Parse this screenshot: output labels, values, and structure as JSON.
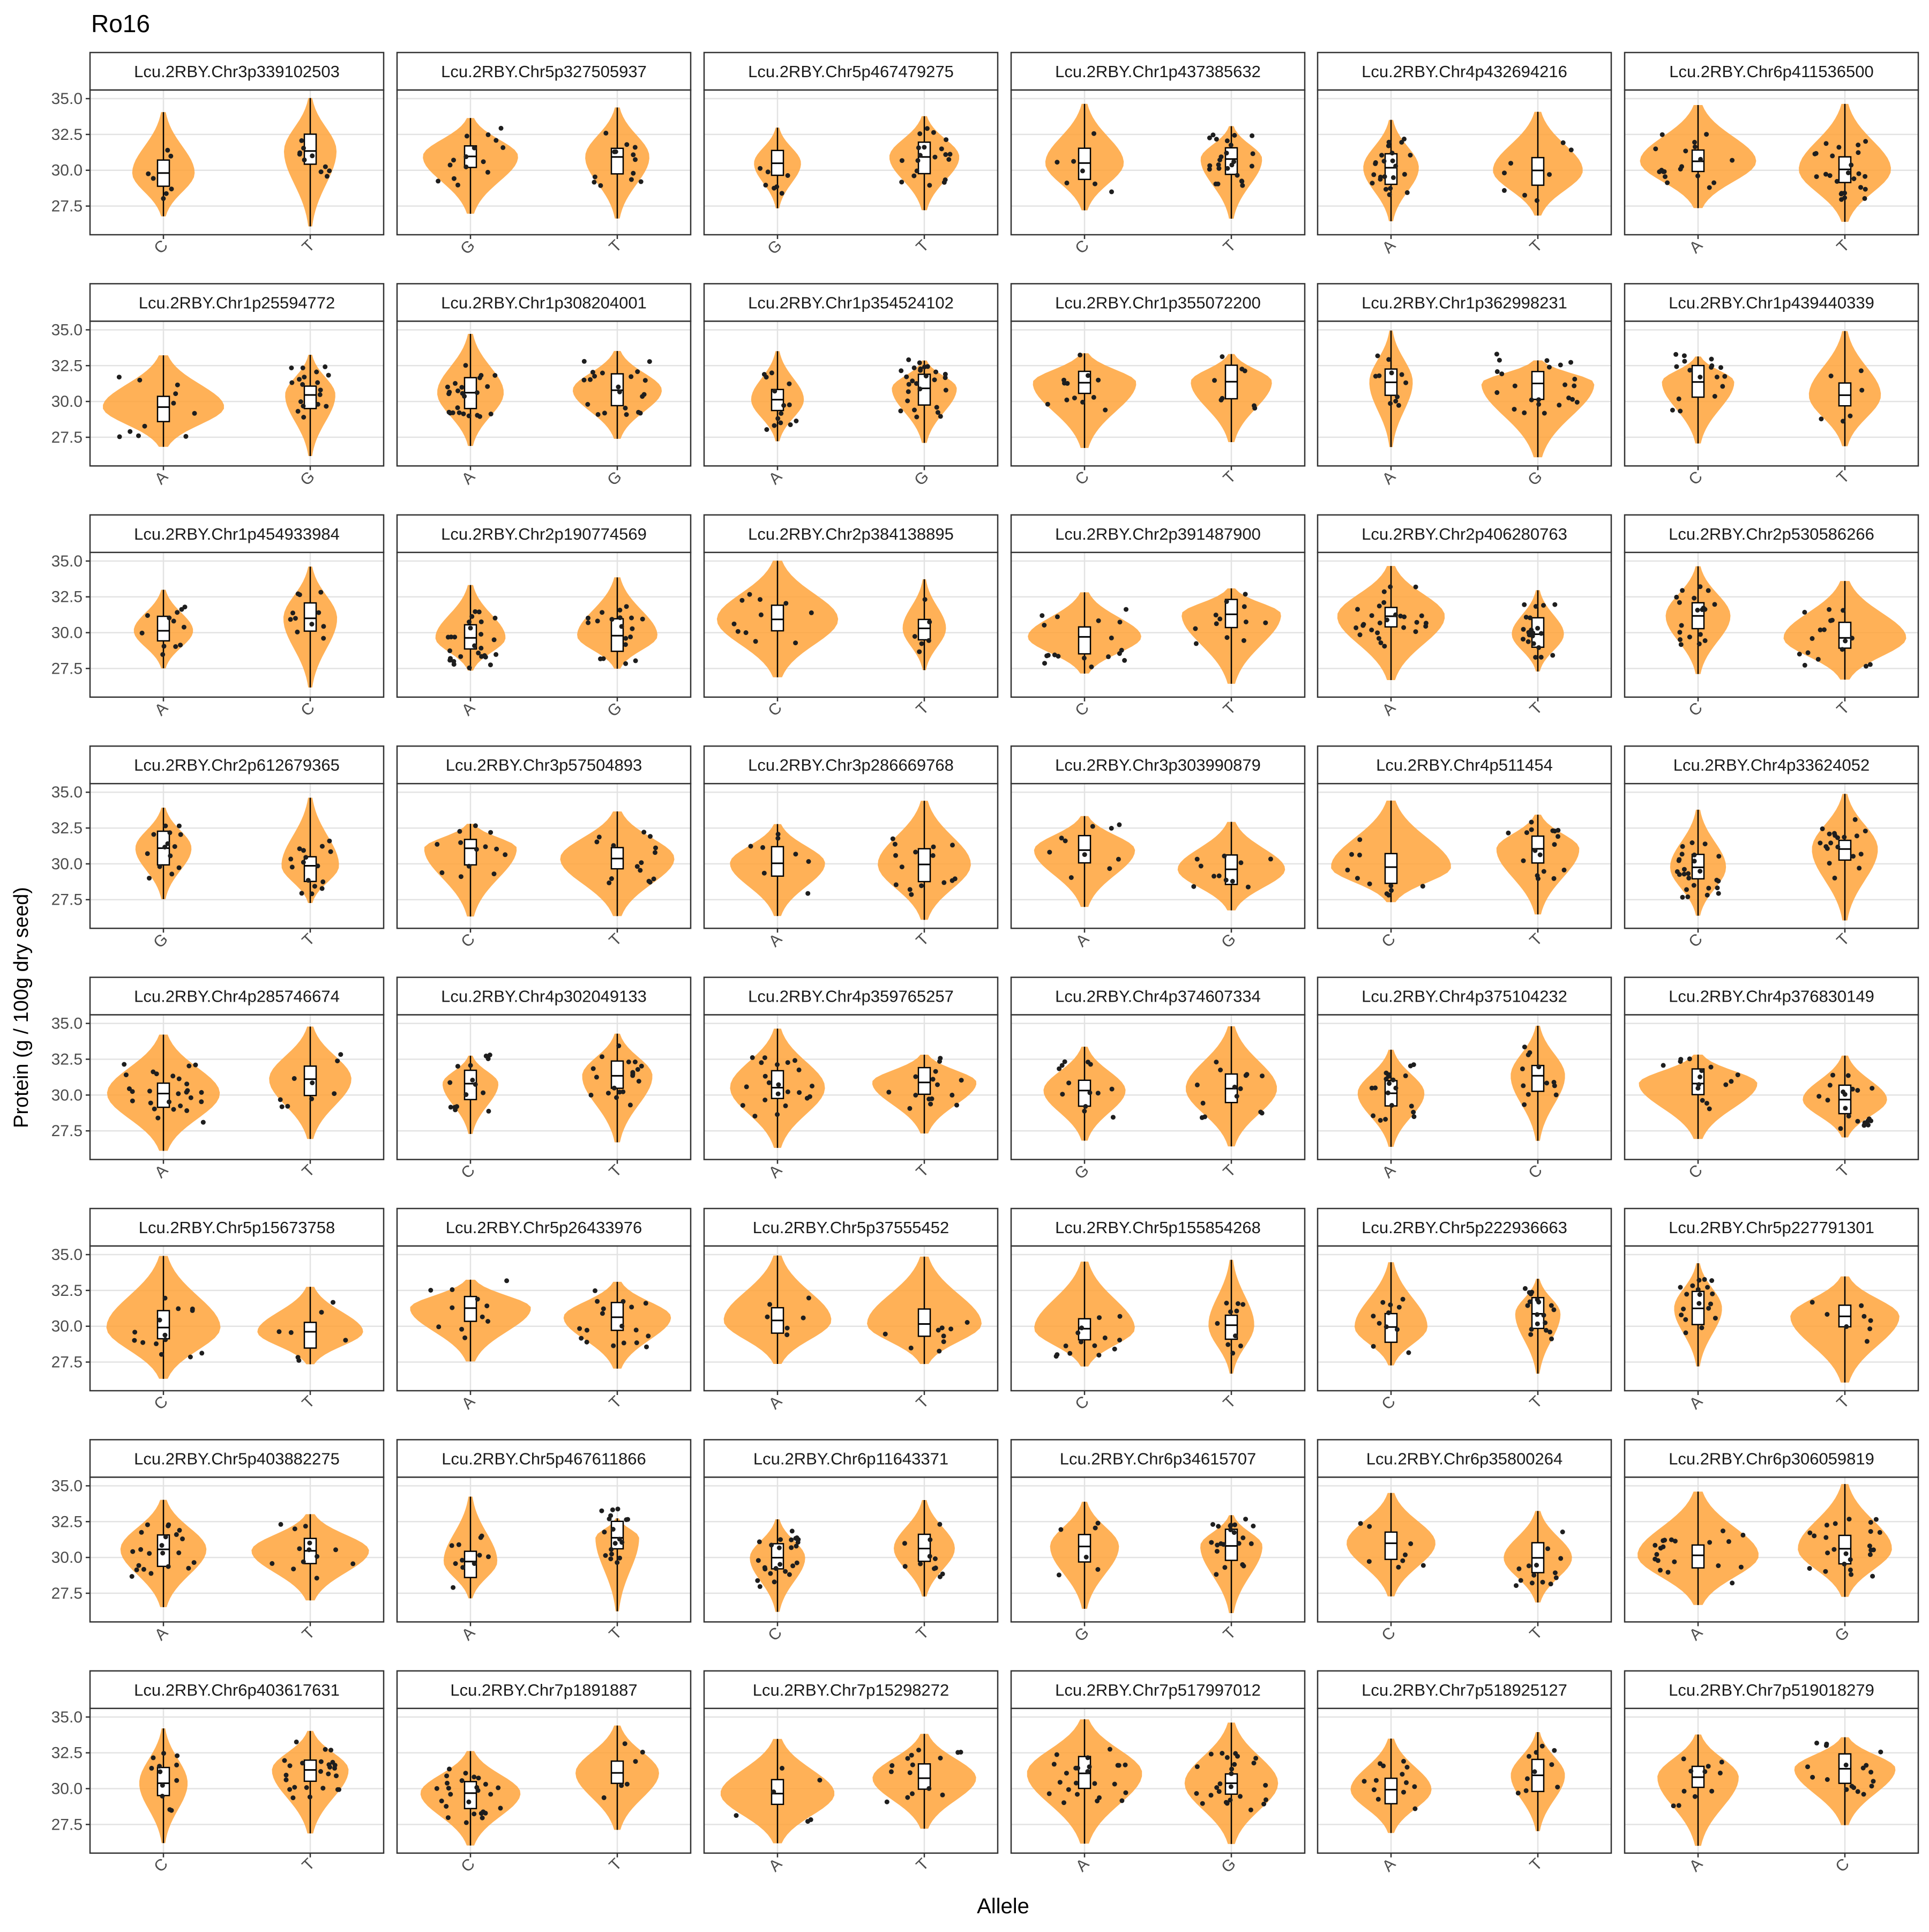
{
  "chart_data": {
    "type": "violin",
    "title": "Ro16",
    "xlabel": "Allele",
    "ylabel": "Protein (g / 100g dry seed)",
    "ylim": [
      25.5,
      35.6
    ],
    "yticks": [
      "27.5",
      "30.0",
      "32.5",
      "35.0"
    ],
    "ncols": 6,
    "nrows": 8,
    "violin_fill": "#FFA33A",
    "panels": [
      {
        "title": "Lcu.2RBY.Chr3p339102503",
        "alleles": [
          "C",
          "T"
        ]
      },
      {
        "title": "Lcu.2RBY.Chr5p327505937",
        "alleles": [
          "G",
          "T"
        ]
      },
      {
        "title": "Lcu.2RBY.Chr5p467479275",
        "alleles": [
          "G",
          "T"
        ]
      },
      {
        "title": "Lcu.2RBY.Chr1p437385632",
        "alleles": [
          "C",
          "T"
        ]
      },
      {
        "title": "Lcu.2RBY.Chr4p432694216",
        "alleles": [
          "A",
          "T"
        ]
      },
      {
        "title": "Lcu.2RBY.Chr6p411536500",
        "alleles": [
          "A",
          "T"
        ]
      },
      {
        "title": "Lcu.2RBY.Chr1p25594772",
        "alleles": [
          "A",
          "G"
        ]
      },
      {
        "title": "Lcu.2RBY.Chr1p308204001",
        "alleles": [
          "A",
          "G"
        ]
      },
      {
        "title": "Lcu.2RBY.Chr1p354524102",
        "alleles": [
          "A",
          "G"
        ]
      },
      {
        "title": "Lcu.2RBY.Chr1p355072200",
        "alleles": [
          "C",
          "T"
        ]
      },
      {
        "title": "Lcu.2RBY.Chr1p362998231",
        "alleles": [
          "A",
          "G"
        ]
      },
      {
        "title": "Lcu.2RBY.Chr1p439440339",
        "alleles": [
          "C",
          "T"
        ]
      },
      {
        "title": "Lcu.2RBY.Chr1p454933984",
        "alleles": [
          "A",
          "C"
        ]
      },
      {
        "title": "Lcu.2RBY.Chr2p190774569",
        "alleles": [
          "A",
          "G"
        ]
      },
      {
        "title": "Lcu.2RBY.Chr2p384138895",
        "alleles": [
          "C",
          "T"
        ]
      },
      {
        "title": "Lcu.2RBY.Chr2p391487900",
        "alleles": [
          "C",
          "T"
        ]
      },
      {
        "title": "Lcu.2RBY.Chr2p406280763",
        "alleles": [
          "A",
          "T"
        ]
      },
      {
        "title": "Lcu.2RBY.Chr2p530586266",
        "alleles": [
          "C",
          "T"
        ]
      },
      {
        "title": "Lcu.2RBY.Chr2p612679365",
        "alleles": [
          "G",
          "T"
        ]
      },
      {
        "title": "Lcu.2RBY.Chr3p57504893",
        "alleles": [
          "C",
          "T"
        ]
      },
      {
        "title": "Lcu.2RBY.Chr3p286669768",
        "alleles": [
          "A",
          "T"
        ]
      },
      {
        "title": "Lcu.2RBY.Chr3p303990879",
        "alleles": [
          "A",
          "G"
        ]
      },
      {
        "title": "Lcu.2RBY.Chr4p511454",
        "alleles": [
          "C",
          "T"
        ]
      },
      {
        "title": "Lcu.2RBY.Chr4p33624052",
        "alleles": [
          "C",
          "T"
        ]
      },
      {
        "title": "Lcu.2RBY.Chr4p285746674",
        "alleles": [
          "A",
          "T"
        ]
      },
      {
        "title": "Lcu.2RBY.Chr4p302049133",
        "alleles": [
          "C",
          "T"
        ]
      },
      {
        "title": "Lcu.2RBY.Chr4p359765257",
        "alleles": [
          "A",
          "T"
        ]
      },
      {
        "title": "Lcu.2RBY.Chr4p374607334",
        "alleles": [
          "G",
          "T"
        ]
      },
      {
        "title": "Lcu.2RBY.Chr4p375104232",
        "alleles": [
          "A",
          "C"
        ]
      },
      {
        "title": "Lcu.2RBY.Chr4p376830149",
        "alleles": [
          "C",
          "T"
        ]
      },
      {
        "title": "Lcu.2RBY.Chr5p15673758",
        "alleles": [
          "C",
          "T"
        ]
      },
      {
        "title": "Lcu.2RBY.Chr5p26433976",
        "alleles": [
          "A",
          "T"
        ]
      },
      {
        "title": "Lcu.2RBY.Chr5p37555452",
        "alleles": [
          "A",
          "T"
        ]
      },
      {
        "title": "Lcu.2RBY.Chr5p155854268",
        "alleles": [
          "C",
          "T"
        ]
      },
      {
        "title": "Lcu.2RBY.Chr5p222936663",
        "alleles": [
          "C",
          "T"
        ]
      },
      {
        "title": "Lcu.2RBY.Chr5p227791301",
        "alleles": [
          "A",
          "T"
        ]
      },
      {
        "title": "Lcu.2RBY.Chr5p403882275",
        "alleles": [
          "A",
          "T"
        ]
      },
      {
        "title": "Lcu.2RBY.Chr5p467611866",
        "alleles": [
          "A",
          "T"
        ]
      },
      {
        "title": "Lcu.2RBY.Chr6p11643371",
        "alleles": [
          "C",
          "T"
        ]
      },
      {
        "title": "Lcu.2RBY.Chr6p34615707",
        "alleles": [
          "G",
          "T"
        ]
      },
      {
        "title": "Lcu.2RBY.Chr6p35800264",
        "alleles": [
          "C",
          "T"
        ]
      },
      {
        "title": "Lcu.2RBY.Chr6p306059819",
        "alleles": [
          "A",
          "G"
        ]
      },
      {
        "title": "Lcu.2RBY.Chr6p403617631",
        "alleles": [
          "C",
          "T"
        ]
      },
      {
        "title": "Lcu.2RBY.Chr7p1891887",
        "alleles": [
          "C",
          "T"
        ]
      },
      {
        "title": "Lcu.2RBY.Chr7p15298272",
        "alleles": [
          "A",
          "T"
        ]
      },
      {
        "title": "Lcu.2RBY.Chr7p517997012",
        "alleles": [
          "A",
          "G"
        ]
      },
      {
        "title": "Lcu.2RBY.Chr7p518925127",
        "alleles": [
          "A",
          "T"
        ]
      },
      {
        "title": "Lcu.2RBY.Chr7p519018279",
        "alleles": [
          "A",
          "C"
        ]
      }
    ]
  }
}
